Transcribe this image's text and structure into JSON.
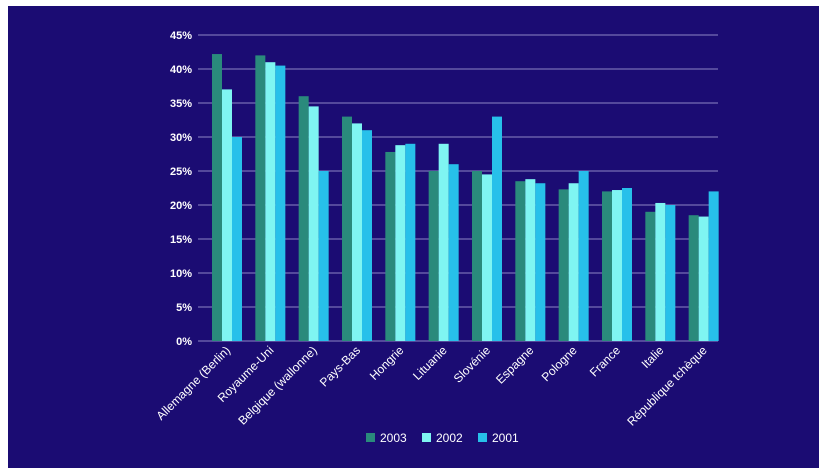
{
  "chart_data": {
    "type": "bar",
    "categories": [
      "Allemagne (Berlin)",
      "Royaume-Uni",
      "Belgique (wallonne)",
      "Pays-Bas",
      "Hongrie",
      "Lituanie",
      "Slovénie",
      "Espagne",
      "Pologne",
      "France",
      "Italie",
      "République tchèque"
    ],
    "series": [
      {
        "name": "2003",
        "color": "#2a8a7c",
        "values": [
          42.2,
          42.0,
          36.0,
          33.0,
          27.8,
          25.0,
          25.0,
          23.5,
          22.3,
          22.0,
          19.0,
          18.5
        ]
      },
      {
        "name": "2002",
        "color": "#7ff5f2",
        "values": [
          37.0,
          41.0,
          34.5,
          32.0,
          28.8,
          29.0,
          24.5,
          23.8,
          23.2,
          22.2,
          20.3,
          18.3
        ]
      },
      {
        "name": "2001",
        "color": "#27c0ea",
        "values": [
          30.0,
          40.5,
          25.0,
          31.0,
          29.0,
          26.0,
          33.0,
          23.2,
          25.0,
          22.5,
          20.0,
          22.0
        ]
      }
    ],
    "ylim": [
      0,
      45
    ],
    "yticks": [
      0,
      5,
      10,
      15,
      20,
      25,
      30,
      35,
      40,
      45
    ],
    "ytick_labels": [
      "0%",
      "5%",
      "10%",
      "15%",
      "20%",
      "25%",
      "30%",
      "35%",
      "40%",
      "45%"
    ],
    "grid": true,
    "legend_position": "bottom",
    "title": "",
    "xlabel": "",
    "ylabel": ""
  },
  "colors": {
    "background": "#1b0c73",
    "grid": "#8e86c4",
    "text": "#ffffff"
  }
}
